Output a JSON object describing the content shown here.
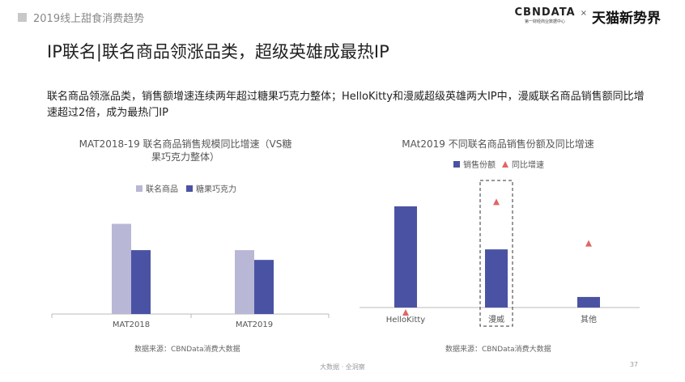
{
  "header": {
    "report_label": "2019线上甜食消费趋势",
    "logo_brand": "CBNDATA",
    "logo_tagline": "第一财经商业数据中心",
    "logo_separator": "×",
    "partner_logo": "天猫新势界"
  },
  "page_title": "IP联名|联名商品领涨品类，超级英雄成最热IP",
  "summary": "联名商品领涨品类，销售额增速连续两年超过糖果巧克力整体；HelloKitty和漫威超级英雄两大IP中，漫威联名商品销售额同比增速超过2倍，成为最热门IP",
  "colors": {
    "light_purple": "#b9b7d6",
    "dark_blue": "#4a53a3",
    "red": "#e06666"
  },
  "chart_data": [
    {
      "type": "bar",
      "title_line1": "MAT2018-19  联名商品销售规模同比增速（VS糖",
      "title_line2": "果巧克力整体）",
      "categories": [
        "MAT2018",
        "MAT2019"
      ],
      "series": [
        {
          "name": "联名商品",
          "values": [
            120,
            85
          ]
        },
        {
          "name": "糖果巧克力",
          "values": [
            85,
            72
          ]
        }
      ],
      "ylim": [
        0,
        140
      ],
      "legend_position": "top",
      "grid": false,
      "source": "数据来源：CBNData消费大数据"
    },
    {
      "type": "bar+scatter",
      "title": "MAt2019  不同联名商品销售份额及同比增速",
      "categories": [
        "HelloKitty",
        "漫威",
        "其他"
      ],
      "series": [
        {
          "name": "销售份额",
          "values": [
            134,
            77,
            14
          ]
        },
        {
          "name": "同比增速",
          "values": [
            0,
            140,
            85
          ]
        }
      ],
      "ylim": [
        0,
        150
      ],
      "highlight_category": "漫威",
      "legend_position": "top",
      "grid": false,
      "source": "数据来源：CBNData消费大数据"
    }
  ],
  "footer": {
    "text": "大数据 · 全洞察",
    "page_number": "37"
  }
}
